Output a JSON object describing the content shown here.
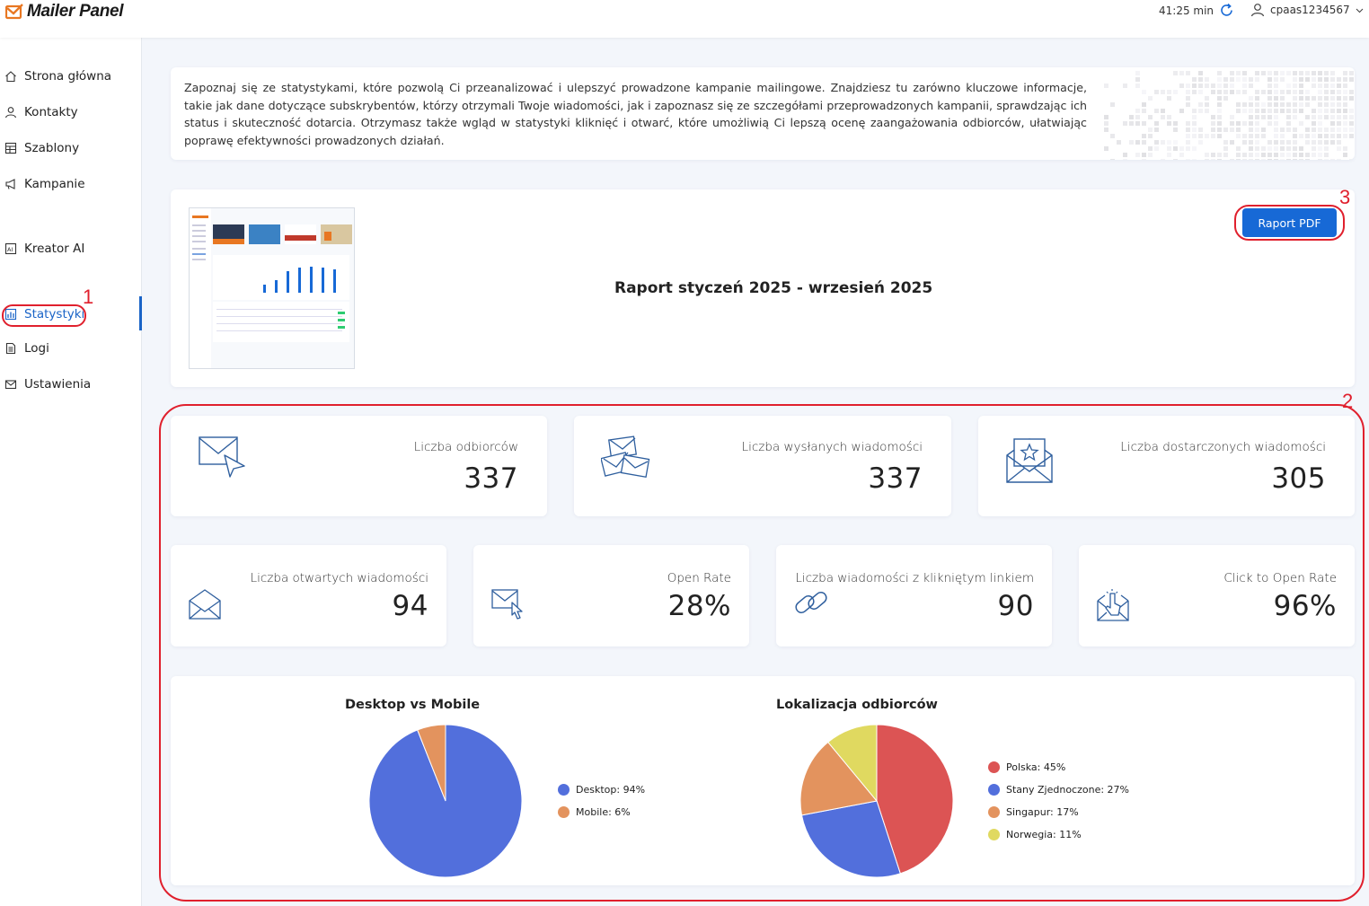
{
  "header": {
    "brand": "Mailer Panel",
    "session_time": "41:25 min",
    "username": "cpaas1234567"
  },
  "sidebar": {
    "items": [
      {
        "label": "Strona główna",
        "icon": "home-icon"
      },
      {
        "label": "Kontakty",
        "icon": "user-icon"
      },
      {
        "label": "Szablony",
        "icon": "template-icon"
      },
      {
        "label": "Kampanie",
        "icon": "megaphone-icon"
      },
      {
        "label": "Kreator AI",
        "icon": "ai-icon"
      },
      {
        "label": "Statystyki",
        "icon": "chart-icon",
        "active": true
      },
      {
        "label": "Logi",
        "icon": "document-icon"
      },
      {
        "label": "Ustawienia",
        "icon": "mail-icon"
      }
    ]
  },
  "annotations": {
    "marker_1": "1",
    "marker_2": "2",
    "marker_3": "3",
    "color": "#e0202d"
  },
  "intro": {
    "text": "Zapoznaj się ze statystykami, które pozwolą Ci przeanalizować i ulepszyć prowadzone kampanie mailingowe. Znajdziesz tu zarówno kluczowe informacje, takie jak dane dotyczące subskrybentów, którzy otrzymali Twoje wiadomości, jak i zapoznasz się ze szczegółami przeprowadzonych kampanii, sprawdzając ich status i skuteczność dotarcia. Otrzymasz także wgląd w statystyki kliknięć i otwarć, które umożliwią Ci lepszą ocenę zaangażowania odbiorców, ułatwiając poprawę efektywności prowadzonych działań."
  },
  "report": {
    "title": "Raport styczeń 2025 - wrzesień 2025",
    "pdf_button": "Raport PDF"
  },
  "stats": {
    "recipients": {
      "label": "Liczba odbiorców",
      "value": "337"
    },
    "sent": {
      "label": "Liczba wysłanych wiadomości",
      "value": "337"
    },
    "delivered": {
      "label": "Liczba dostarczonych wiadomości",
      "value": "305"
    },
    "opened": {
      "label": "Liczba otwartych wiadomości",
      "value": "94"
    },
    "open_rate": {
      "label": "Open Rate",
      "value": "28%"
    },
    "clicked": {
      "label": "Liczba wiadomości z klikniętym linkiem",
      "value": "90"
    },
    "ctor": {
      "label": "Click to Open Rate",
      "value": "96%"
    }
  },
  "colors": {
    "accent": "#1769d6",
    "icon_stroke": "#2f5f9e"
  },
  "chart_data": [
    {
      "type": "pie",
      "title": "Desktop vs Mobile",
      "categories": [
        "Desktop",
        "Mobile"
      ],
      "values": [
        94,
        6
      ],
      "legend": [
        "Desktop: 94%",
        "Mobile: 6%"
      ],
      "colors": [
        "#526fdc",
        "#e3935e"
      ],
      "legend_position": "right"
    },
    {
      "type": "pie",
      "title": "Lokalizacja odbiorców",
      "categories": [
        "Polska",
        "Stany Zjednoczone",
        "Singapur",
        "Norwegia"
      ],
      "values": [
        45,
        27,
        17,
        11
      ],
      "legend": [
        "Polska: 45%",
        "Stany Zjednoczone: 27%",
        "Singapur: 17%",
        "Norwegia: 11%"
      ],
      "colors": [
        "#dc5454",
        "#526fdc",
        "#e3935e",
        "#e0d960"
      ],
      "legend_position": "right"
    }
  ]
}
